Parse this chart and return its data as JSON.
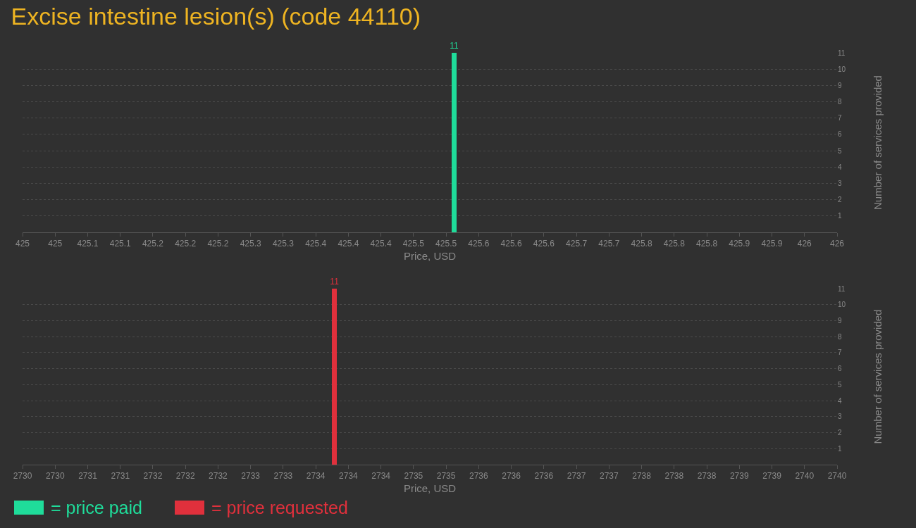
{
  "chart_data": [
    {
      "type": "bar",
      "title": "Excise intestine lesion(s) (code 44110)",
      "xlabel": "Price, USD",
      "ylabel": "Number of services provided",
      "x": [
        425.53
      ],
      "series": [
        {
          "name": "= price paid",
          "color": "#1fdc9a",
          "values": [
            11
          ]
        }
      ],
      "xlim": [
        425,
        426
      ],
      "xticks": [
        425,
        {
          "value": 425.04,
          "label": "425"
        },
        {
          "value": 425.08,
          "label": "425.1"
        },
        {
          "value": 425.12,
          "label": "425.1"
        },
        {
          "value": 425.16,
          "label": "425.2"
        },
        {
          "value": 425.2,
          "label": "425.2"
        },
        {
          "value": 425.24,
          "label": "425.2"
        },
        {
          "value": 425.28,
          "label": "425.3"
        },
        {
          "value": 425.32,
          "label": "425.3"
        },
        {
          "value": 425.36,
          "label": "425.4"
        },
        {
          "value": 425.4,
          "label": "425.4"
        },
        {
          "value": 425.44,
          "label": "425.4"
        },
        {
          "value": 425.48,
          "label": "425.5"
        },
        {
          "value": 425.52,
          "label": "425.5"
        },
        {
          "value": 425.56,
          "label": "425.6"
        },
        {
          "value": 425.6,
          "label": "425.6"
        },
        {
          "value": 425.64,
          "label": "425.6"
        },
        {
          "value": 425.68,
          "label": "425.7"
        },
        {
          "value": 425.72,
          "label": "425.7"
        },
        {
          "value": 425.76,
          "label": "425.8"
        },
        {
          "value": 425.8,
          "label": "425.8"
        },
        {
          "value": 425.84,
          "label": "425.8"
        },
        {
          "value": 425.88,
          "label": "425.9"
        },
        {
          "value": 425.92,
          "label": "425.9"
        },
        {
          "value": 425.96,
          "label": "426"
        },
        426
      ],
      "ylim": [
        0,
        11
      ],
      "yticks": [
        1,
        2,
        3,
        4,
        5,
        6,
        7,
        8,
        9,
        10,
        11
      ],
      "grid": "y",
      "data_labels": true,
      "legend": "bottom left"
    },
    {
      "type": "bar",
      "xlabel": "Price, USD",
      "ylabel": "Number of services provided",
      "x": [
        2733.83
      ],
      "series": [
        {
          "name": "= price requested",
          "color": "#e0303c",
          "values": [
            11
          ]
        }
      ],
      "xlim": [
        2730,
        2740
      ],
      "xticks": [
        2730,
        {
          "value": 2730.4,
          "label": "2730"
        },
        {
          "value": 2730.8,
          "label": "2731"
        },
        {
          "value": 2731.2,
          "label": "2731"
        },
        {
          "value": 2731.6,
          "label": "2732"
        },
        2732,
        {
          "value": 2732.4,
          "label": "2732"
        },
        {
          "value": 2732.8,
          "label": "2733"
        },
        {
          "value": 2733.2,
          "label": "2733"
        },
        {
          "value": 2733.6,
          "label": "2734"
        },
        2734,
        {
          "value": 2734.4,
          "label": "2734"
        },
        {
          "value": 2734.8,
          "label": "2735"
        },
        {
          "value": 2735.2,
          "label": "2735"
        },
        {
          "value": 2735.6,
          "label": "2736"
        },
        2736,
        {
          "value": 2736.4,
          "label": "2736"
        },
        {
          "value": 2736.8,
          "label": "2737"
        },
        {
          "value": 2737.2,
          "label": "2737"
        },
        {
          "value": 2737.6,
          "label": "2738"
        },
        2738,
        {
          "value": 2738.4,
          "label": "2738"
        },
        {
          "value": 2738.8,
          "label": "2739"
        },
        {
          "value": 2739.2,
          "label": "2739"
        },
        {
          "value": 2739.6,
          "label": "2740"
        },
        2740
      ],
      "ylim": [
        0,
        11
      ],
      "yticks": [
        1,
        2,
        3,
        4,
        5,
        6,
        7,
        8,
        9,
        10,
        11
      ],
      "grid": "y",
      "data_labels": true,
      "legend": "bottom left"
    }
  ]
}
